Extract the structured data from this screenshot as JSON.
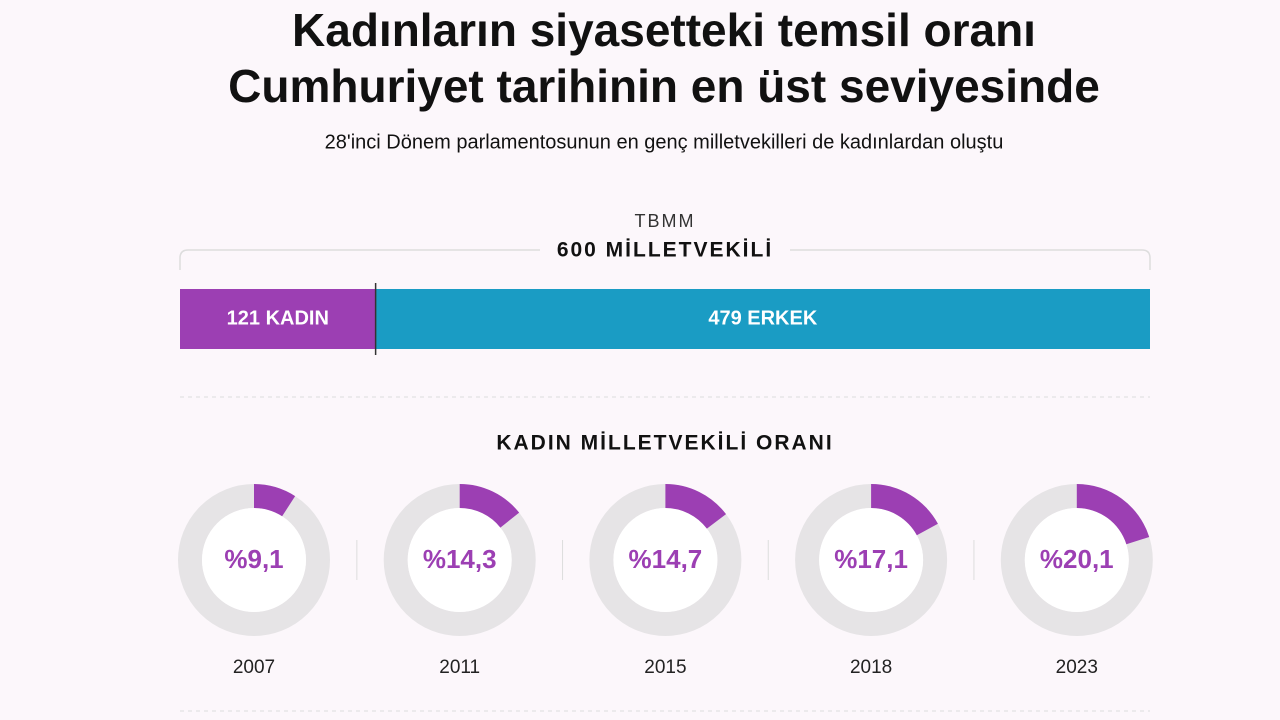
{
  "header": {
    "title": [
      "Kadınların siyasetteki temsil oranı",
      "Cumhuriyet tarihinin en üst seviyesinde"
    ],
    "subtitle": "28'inci Dönem parlamentosunun en genç milletvekilleri de kadınlardan oluştu"
  },
  "chart_data": [
    {
      "type": "stacked-bar",
      "title": "TBMM",
      "subtitle": "600 MİLLETVEKİLİ",
      "xlim": [
        0,
        600
      ],
      "values": [
        121,
        479
      ],
      "value_labels": [
        "121 KADIN",
        "479 ERKEK"
      ],
      "colors": [
        "#9c3fb3",
        "#1a9cc4"
      ]
    },
    {
      "type": "donut",
      "title": "KADIN MİLLETVEKİLİ ORANI",
      "categories": [
        "2007",
        "2011",
        "2015",
        "2018",
        "2023"
      ],
      "values": [
        9.1,
        14.3,
        14.7,
        17.1,
        20.1
      ],
      "value_labels": [
        "%9,1",
        "%14,3",
        "%14,7",
        "%17,1",
        "%20,1"
      ],
      "color": "#9c3fb3",
      "track_color": "#e6e4e6"
    }
  ]
}
